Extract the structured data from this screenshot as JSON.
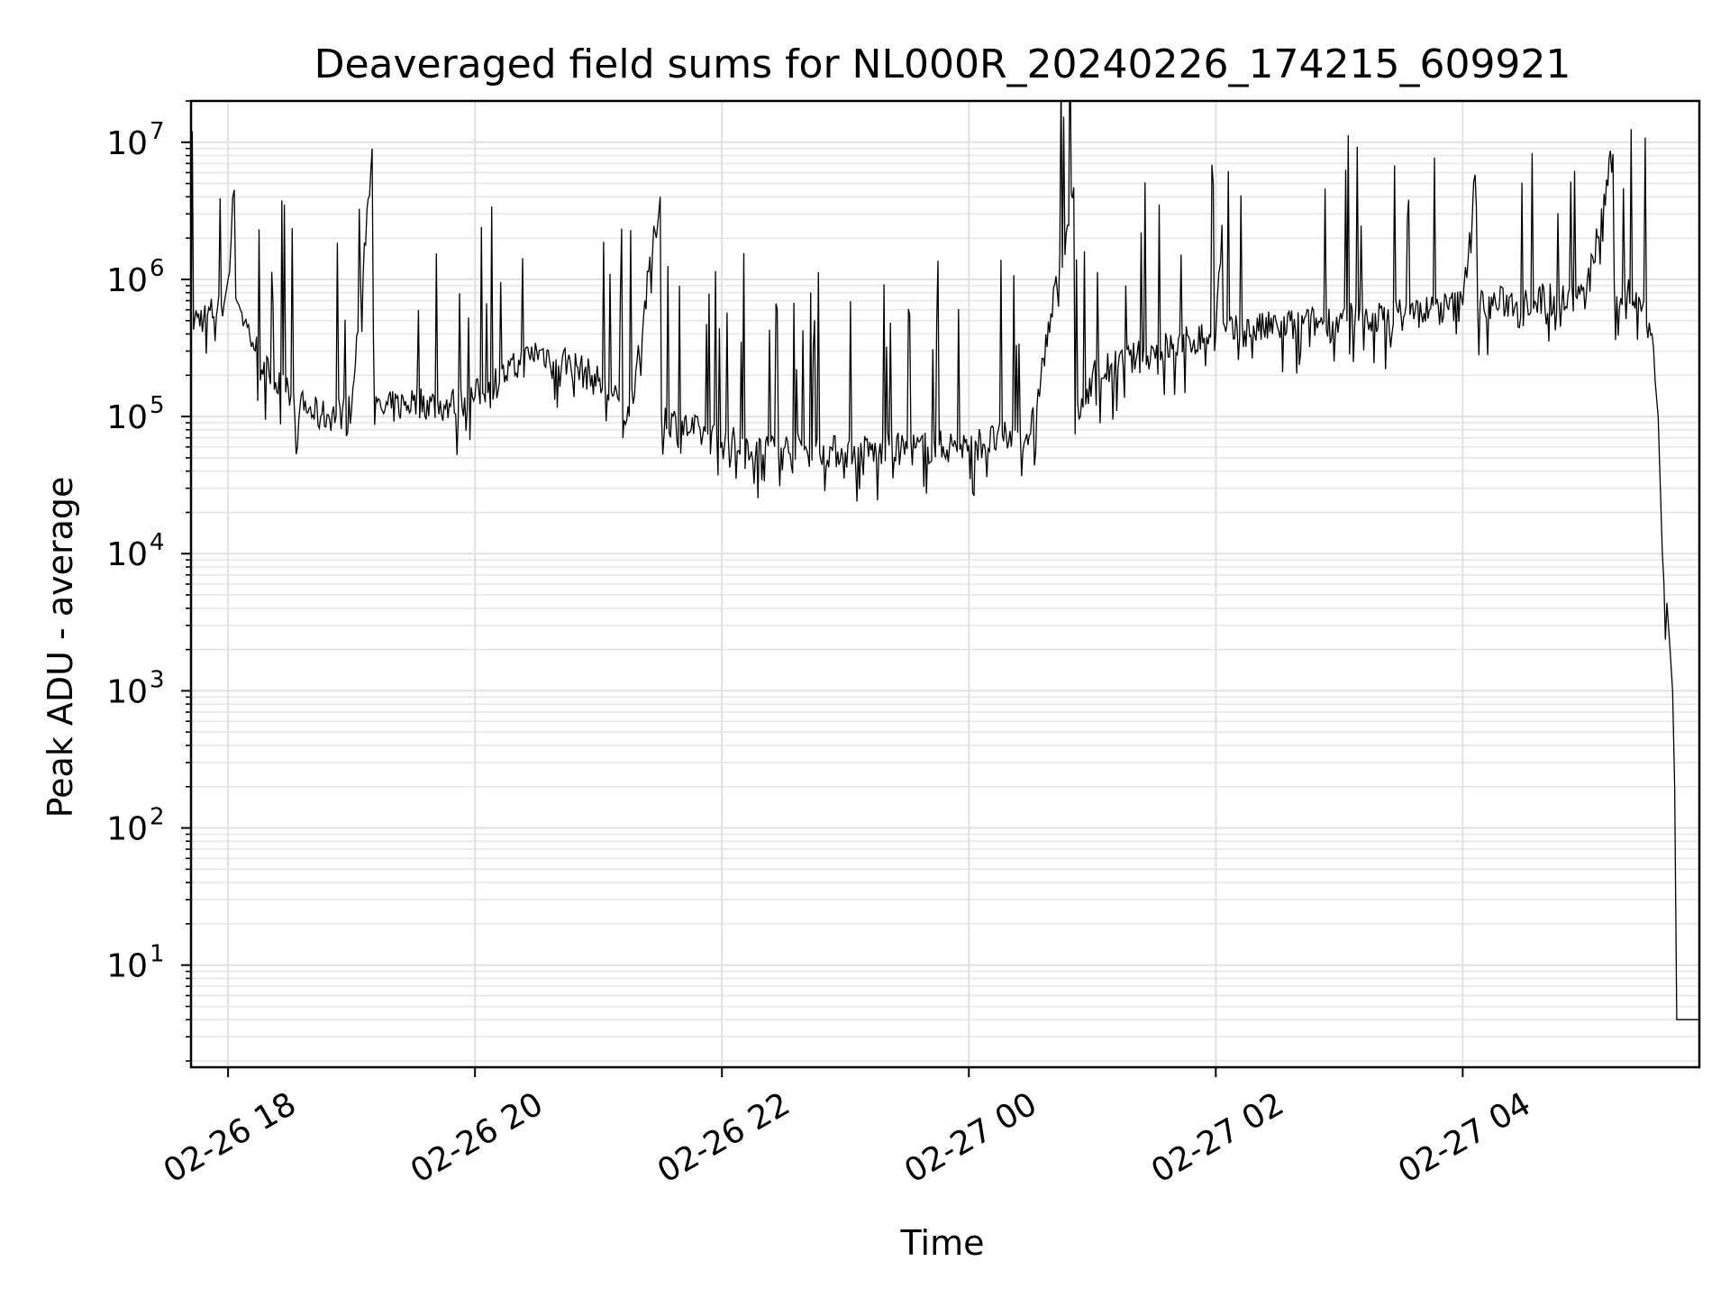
{
  "chart_data": {
    "type": "line",
    "title": "Deaveraged field sums for NL000R_20240226_174215_609921",
    "xlabel": "Time",
    "ylabel": "Peak ADU - average",
    "x_tick_labels": [
      "02-26 18",
      "02-26 20",
      "02-26 22",
      "02-27 00",
      "02-27 02",
      "02-27 04"
    ],
    "x_ticks": [
      "2024-02-26 18:00",
      "2024-02-26 20:00",
      "2024-02-26 22:00",
      "2024-02-27 00:00",
      "2024-02-27 02:00",
      "2024-02-27 04:00"
    ],
    "xlim": [
      "2024-02-26 17:42",
      "2024-02-27 05:55"
    ],
    "yscale": "log",
    "ylim": [
      1.8,
      20000000
    ],
    "y_ticks": [
      {
        "base": "10",
        "exp": "1",
        "value": 10
      },
      {
        "base": "10",
        "exp": "2",
        "value": 100
      },
      {
        "base": "10",
        "exp": "3",
        "value": 1000
      },
      {
        "base": "10",
        "exp": "4",
        "value": 10000
      },
      {
        "base": "10",
        "exp": "5",
        "value": 100000
      },
      {
        "base": "10",
        "exp": "6",
        "value": 1000000
      },
      {
        "base": "10",
        "exp": "7",
        "value": 10000000
      }
    ],
    "grid": true,
    "line_color": "#000000",
    "series": [
      {
        "x": [
          "2024-02-26 17:42",
          "2024-02-26 17:50",
          "2024-02-26 17:58",
          "2024-02-26 18:00",
          "2024-02-26 18:03",
          "2024-02-26 18:06",
          "2024-02-26 18:12",
          "2024-02-26 18:20",
          "2024-02-26 18:28",
          "2024-02-26 18:35",
          "2024-02-26 18:45",
          "2024-02-26 19:00",
          "2024-02-26 19:10",
          "2024-02-26 19:15",
          "2024-02-26 19:30",
          "2024-02-26 19:45",
          "2024-02-26 20:00",
          "2024-02-26 20:15",
          "2024-02-26 20:30",
          "2024-02-26 20:45",
          "2024-02-26 21:00",
          "2024-02-26 21:15",
          "2024-02-26 21:30",
          "2024-02-26 21:45",
          "2024-02-26 22:00",
          "2024-02-26 22:30",
          "2024-02-26 23:00",
          "2024-02-26 23:30",
          "2024-02-27 00:00",
          "2024-02-27 00:30",
          "2024-02-27 00:51",
          "2024-02-27 01:00",
          "2024-02-27 01:30",
          "2024-02-27 02:00",
          "2024-02-27 02:03",
          "2024-02-27 02:30",
          "2024-02-27 03:00",
          "2024-02-27 03:30",
          "2024-02-27 04:00",
          "2024-02-27 04:06",
          "2024-02-27 04:30",
          "2024-02-27 05:00",
          "2024-02-27 05:13",
          "2024-02-27 05:20",
          "2024-02-27 05:28",
          "2024-02-27 05:32",
          "2024-02-27 05:35",
          "2024-02-27 05:37",
          "2024-02-27 05:40",
          "2024-02-27 05:42",
          "2024-02-27 05:43",
          "2024-02-27 05:44",
          "2024-02-27 05:45",
          "2024-02-27 05:47",
          "2024-02-27 05:55"
        ],
        "y": [
          500000,
          550000,
          650000,
          1000000,
          4500000,
          600000,
          350000,
          200000,
          150000,
          120000,
          100000,
          110000,
          9000000,
          110000,
          130000,
          120000,
          140000,
          200000,
          300000,
          250000,
          180000,
          100000,
          4000000,
          80000,
          65000,
          58000,
          55000,
          58000,
          62000,
          75000,
          4700000,
          200000,
          300000,
          400000,
          2500000,
          450000,
          500000,
          550000,
          650000,
          5800000,
          700000,
          750000,
          8200000,
          800000,
          700000,
          400000,
          100000,
          10000,
          3000,
          1000,
          200,
          4,
          4,
          4,
          4
        ]
      }
    ]
  }
}
